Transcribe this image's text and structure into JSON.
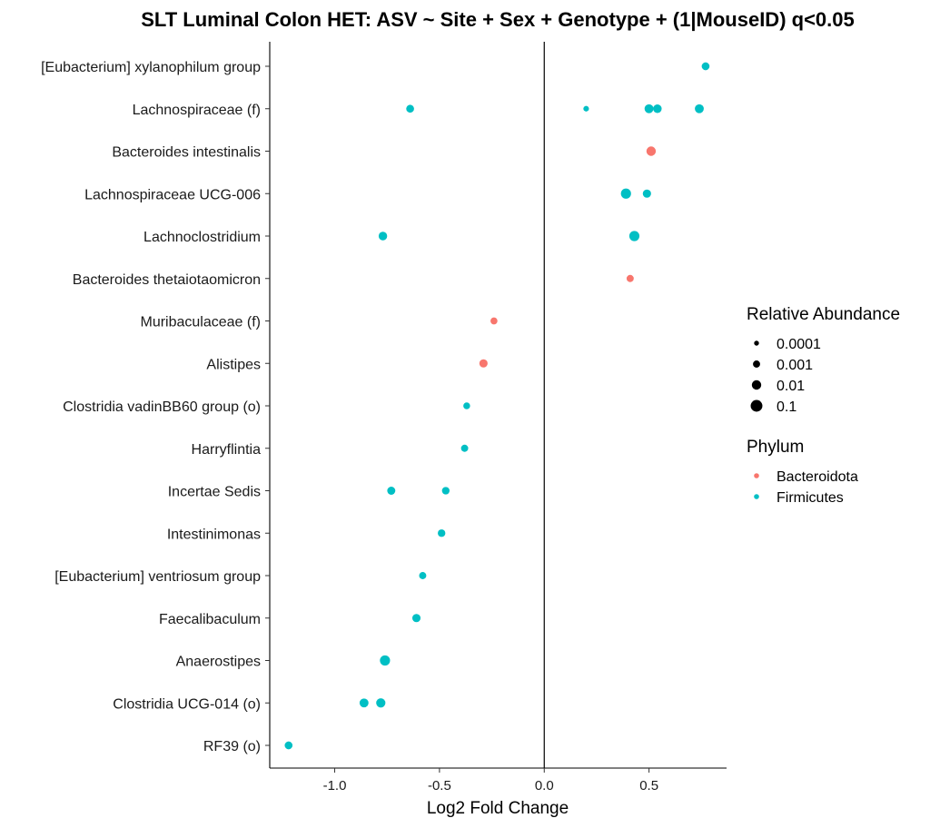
{
  "chart_data": {
    "type": "scatter",
    "title": "SLT Luminal Colon HET: ASV ~ Site + Sex + Genotype + (1|MouseID) q<0.05",
    "xlabel": "Log2 Fold Change",
    "ylabel": "",
    "xlim": [
      -1.31,
      0.87
    ],
    "x_ticks": [
      -1.0,
      -0.5,
      0.0,
      0.5
    ],
    "x_tick_labels": [
      "-1.0",
      "-0.5",
      "0.0",
      "0.5"
    ],
    "vline_at": 0,
    "grid": false,
    "categories": [
      "[Eubacterium] xylanophilum group",
      "Lachnospiraceae (f)",
      "Bacteroides intestinalis",
      "Lachnospiraceae UCG-006",
      "Lachnoclostridium",
      "Bacteroides thetaiotaomicron",
      "Muribaculaceae (f)",
      "Alistipes",
      "Clostridia vadinBB60 group (o)",
      "Harryflintia",
      "Incertae Sedis",
      "Intestinimonas",
      "[Eubacterium] ventriosum group",
      "Faecalibaculum",
      "Anaerostipes",
      "Clostridia UCG-014 (o)",
      "RF39 (o)"
    ],
    "series": [
      {
        "name": "Bacteroidota",
        "color": "#F8766D",
        "points": [
          {
            "category": "Bacteroides intestinalis",
            "x": 0.51,
            "abundance": 0.01
          },
          {
            "category": "Bacteroides thetaiotaomicron",
            "x": 0.41,
            "abundance": 0.001
          },
          {
            "category": "Muribaculaceae (f)",
            "x": -0.24,
            "abundance": 0.0008
          },
          {
            "category": "Alistipes",
            "x": -0.29,
            "abundance": 0.003
          }
        ]
      },
      {
        "name": "Firmicutes",
        "color": "#00BFC4",
        "points": [
          {
            "category": "[Eubacterium] xylanophilum group",
            "x": 0.77,
            "abundance": 0.002
          },
          {
            "category": "Lachnospiraceae (f)",
            "x": -0.64,
            "abundance": 0.002
          },
          {
            "category": "Lachnospiraceae (f)",
            "x": 0.2,
            "abundance": 0.0002
          },
          {
            "category": "Lachnospiraceae (f)",
            "x": 0.5,
            "abundance": 0.006
          },
          {
            "category": "Lachnospiraceae (f)",
            "x": 0.54,
            "abundance": 0.004
          },
          {
            "category": "Lachnospiraceae (f)",
            "x": 0.74,
            "abundance": 0.006
          },
          {
            "category": "Lachnospiraceae UCG-006",
            "x": 0.39,
            "abundance": 0.02
          },
          {
            "category": "Lachnospiraceae UCG-006",
            "x": 0.49,
            "abundance": 0.003
          },
          {
            "category": "Lachnoclostridium",
            "x": -0.77,
            "abundance": 0.004
          },
          {
            "category": "Lachnoclostridium",
            "x": 0.43,
            "abundance": 0.02
          },
          {
            "category": "Clostridia vadinBB60 group (o)",
            "x": -0.37,
            "abundance": 0.0007
          },
          {
            "category": "Harryflintia",
            "x": -0.38,
            "abundance": 0.001
          },
          {
            "category": "Incertae Sedis",
            "x": -0.73,
            "abundance": 0.0025
          },
          {
            "category": "Incertae Sedis",
            "x": -0.47,
            "abundance": 0.0015
          },
          {
            "category": "Intestinimonas",
            "x": -0.49,
            "abundance": 0.0015
          },
          {
            "category": "[Eubacterium] ventriosum group",
            "x": -0.58,
            "abundance": 0.001
          },
          {
            "category": "Faecalibaculum",
            "x": -0.61,
            "abundance": 0.003
          },
          {
            "category": "Anaerostipes",
            "x": -0.76,
            "abundance": 0.02
          },
          {
            "category": "Clostridia UCG-014 (o)",
            "x": -0.86,
            "abundance": 0.006
          },
          {
            "category": "Clostridia UCG-014 (o)",
            "x": -0.78,
            "abundance": 0.008
          },
          {
            "category": "RF39 (o)",
            "x": -1.22,
            "abundance": 0.002
          }
        ]
      }
    ],
    "legends": {
      "placement": "right",
      "size": {
        "title": "Relative Abundance",
        "entries": [
          {
            "label": "0.0001",
            "value": 0.0001
          },
          {
            "label": "0.001",
            "value": 0.001
          },
          {
            "label": "0.01",
            "value": 0.01
          },
          {
            "label": "0.1",
            "value": 0.1
          }
        ]
      },
      "color": {
        "title": "Phylum",
        "entries": [
          {
            "label": "Bacteroidota",
            "color": "#F8766D"
          },
          {
            "label": "Firmicutes",
            "color": "#00BFC4"
          }
        ]
      }
    }
  }
}
